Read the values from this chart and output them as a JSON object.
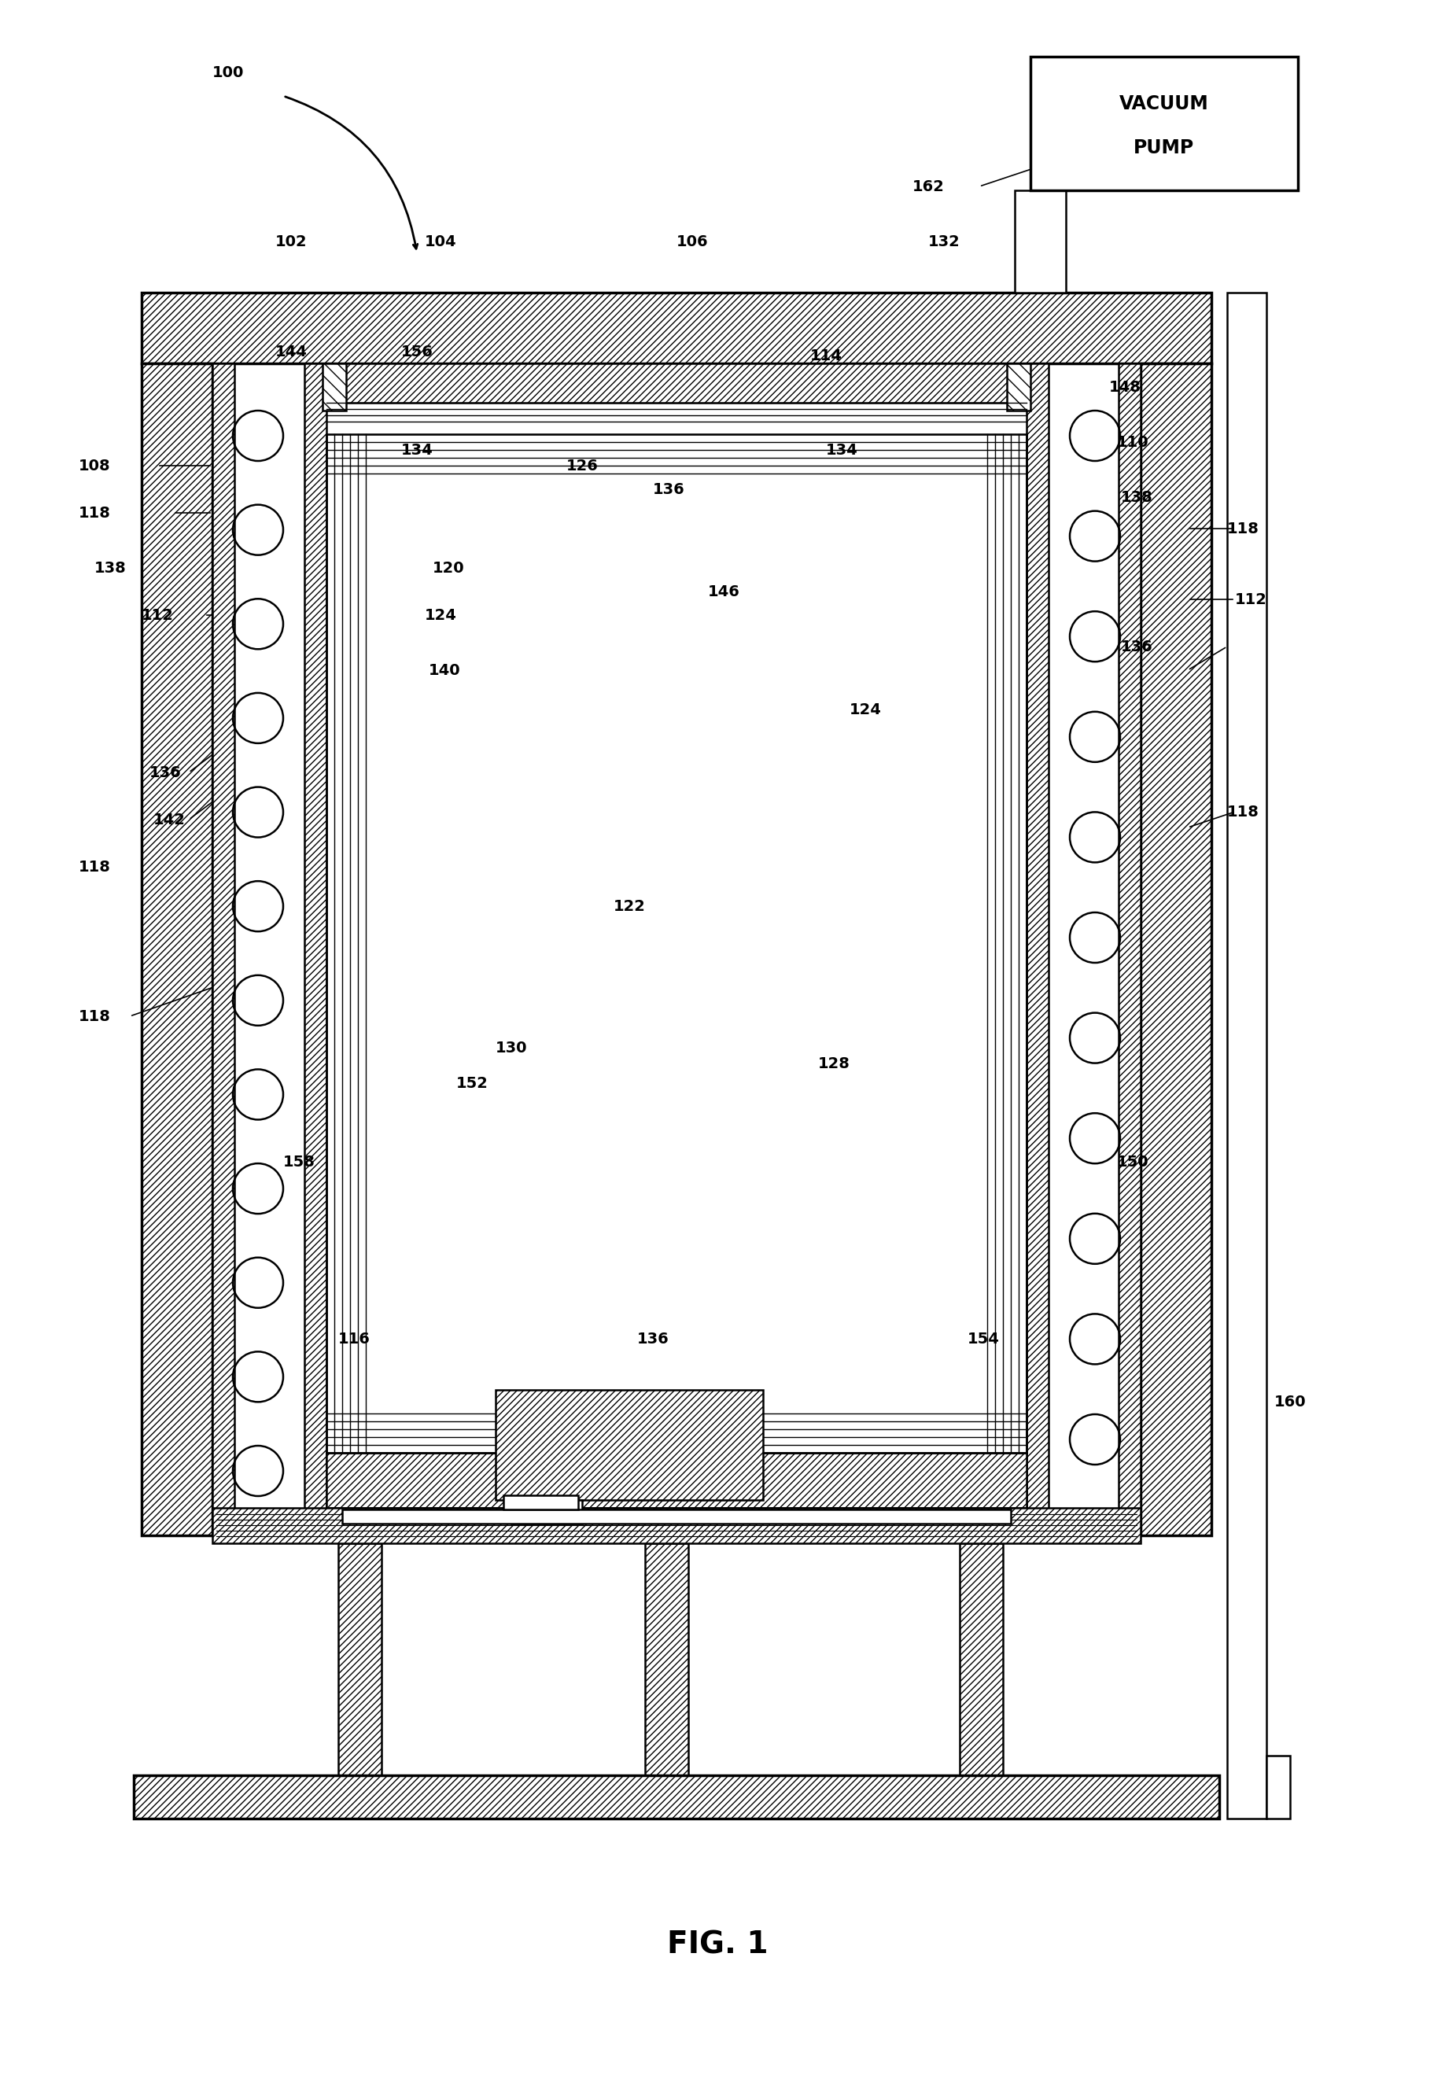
{
  "bg_color": "#ffffff",
  "fig_width": 18.24,
  "fig_height": 26.52,
  "title": "FIG. 1"
}
